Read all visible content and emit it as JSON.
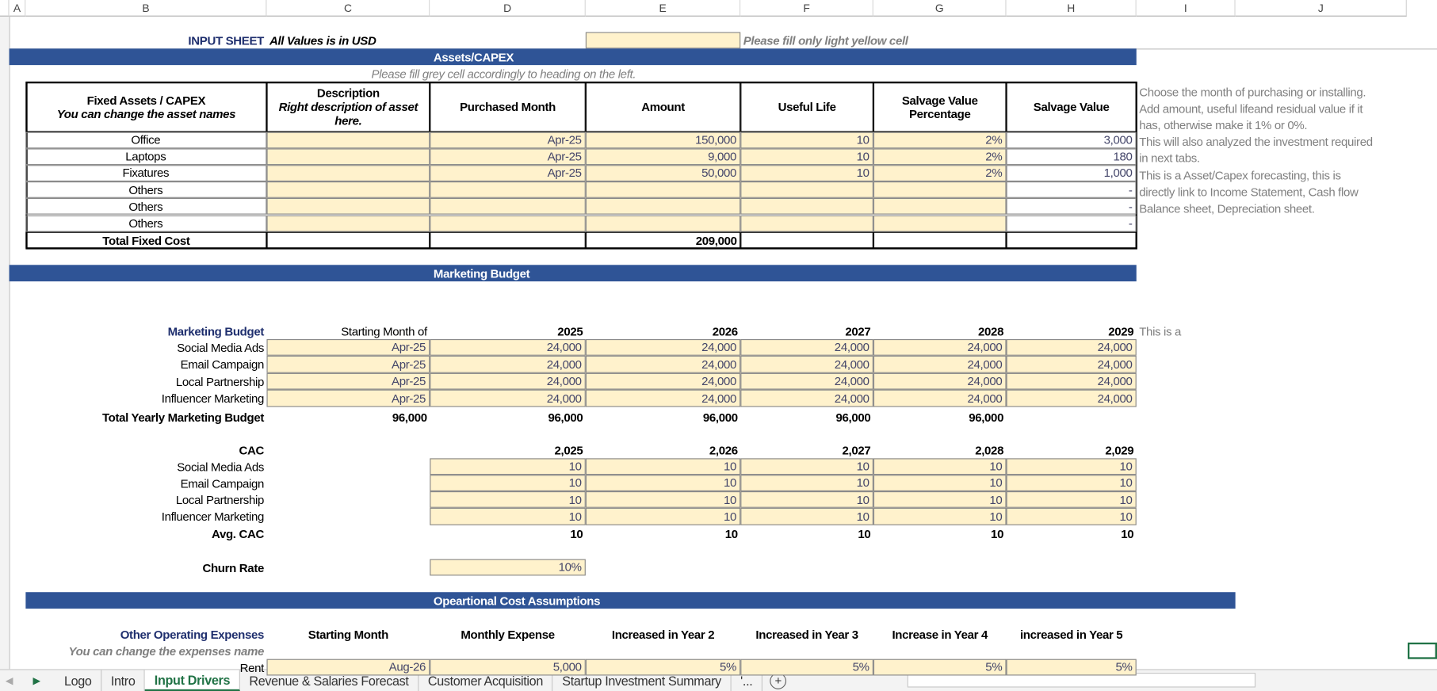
{
  "column_headers": [
    "A",
    "B",
    "C",
    "D",
    "E",
    "F",
    "G",
    "H",
    "I",
    "J"
  ],
  "header": {
    "title": "INPUT SHEET",
    "currency_note": "All Values is in USD",
    "fill_note": "Please fill only light yellow cell"
  },
  "assets": {
    "banner": "Assets/CAPEX",
    "note": "Please fill grey cell accordingly to heading on the left.",
    "columns": {
      "asset": "Fixed Assets / CAPEX",
      "asset_sub": "You can change the asset names",
      "desc": "Description",
      "desc_sub": "Right description of asset here.",
      "month": "Purchased  Month",
      "amount": "Amount",
      "life": "Useful Life",
      "salv_pct": "Salvage Value Percentage",
      "salv": "Salvage Value"
    },
    "rows": [
      {
        "name": "Office",
        "desc": "",
        "month": "Apr-25",
        "amount": "150,000",
        "life": "10",
        "salv_pct": "2%",
        "salv": "3,000"
      },
      {
        "name": "Laptops",
        "desc": "",
        "month": "Apr-25",
        "amount": "9,000",
        "life": "10",
        "salv_pct": "2%",
        "salv": "180"
      },
      {
        "name": "Fixatures",
        "desc": "",
        "month": "Apr-25",
        "amount": "50,000",
        "life": "10",
        "salv_pct": "2%",
        "salv": "1,000"
      },
      {
        "name": "Others",
        "desc": "",
        "month": "",
        "amount": "",
        "life": "",
        "salv_pct": "",
        "salv": "-"
      },
      {
        "name": "Others",
        "desc": "",
        "month": "",
        "amount": "",
        "life": "",
        "salv_pct": "",
        "salv": "-"
      },
      {
        "name": "Others",
        "desc": "",
        "month": "",
        "amount": "",
        "life": "",
        "salv_pct": "",
        "salv": "-"
      }
    ],
    "total_label": "Total Fixed Cost",
    "total_amount": "209,000",
    "help_lines": [
      "Choose the month of purchasing or installing.",
      "Add amount, useful lifeand residual value if it",
      "has, otherwise make it 1% or 0%.",
      "This will also analyzed the investment required",
      "in next tabs.",
      "This is a Asset/Capex forecasting, this is",
      "directly link to Income Statement, Cash flow",
      "Balance sheet, Depreciation sheet."
    ]
  },
  "marketing": {
    "banner": "Marketing Budget",
    "label": "Marketing Budget",
    "start_label": "Starting Month of",
    "years": [
      "2025",
      "2026",
      "2027",
      "2028",
      "2029"
    ],
    "side_note": "This is a",
    "rows": [
      {
        "name": "Social Media Ads",
        "start": "Apr-25",
        "values": [
          "24,000",
          "24,000",
          "24,000",
          "24,000",
          "24,000"
        ]
      },
      {
        "name": "Email Campaign",
        "start": "Apr-25",
        "values": [
          "24,000",
          "24,000",
          "24,000",
          "24,000",
          "24,000"
        ]
      },
      {
        "name": "Local Partnership",
        "start": "Apr-25",
        "values": [
          "24,000",
          "24,000",
          "24,000",
          "24,000",
          "24,000"
        ]
      },
      {
        "name": "Influencer Marketing",
        "start": "Apr-25",
        "values": [
          "24,000",
          "24,000",
          "24,000",
          "24,000",
          "24,000"
        ]
      }
    ],
    "total_label": "Total Yearly Marketing Budget",
    "total_start": "96,000",
    "totals": [
      "96,000",
      "96,000",
      "96,000",
      "96,000",
      ""
    ]
  },
  "cac": {
    "label": "CAC",
    "years": [
      "2,025",
      "2,026",
      "2,027",
      "2,028",
      "2,029"
    ],
    "rows": [
      {
        "name": "Social Media Ads",
        "values": [
          "10",
          "10",
          "10",
          "10",
          "10"
        ]
      },
      {
        "name": "Email Campaign",
        "values": [
          "10",
          "10",
          "10",
          "10",
          "10"
        ]
      },
      {
        "name": "Local Partnership",
        "values": [
          "10",
          "10",
          "10",
          "10",
          "10"
        ]
      },
      {
        "name": "Influencer Marketing",
        "values": [
          "10",
          "10",
          "10",
          "10",
          "10"
        ]
      }
    ],
    "avg_label": "Avg. CAC",
    "avg": [
      "10",
      "10",
      "10",
      "10",
      "10"
    ]
  },
  "churn": {
    "label": "Churn Rate",
    "value": "10%"
  },
  "opex": {
    "banner": "Opeartional Cost Assumptions",
    "label": "Other Operating Expenses",
    "sub": "You can change the expenses name",
    "columns": [
      "Starting Month",
      "Monthly Expense",
      "Increased in Year 2",
      "Increased in Year 3",
      "Increase in Year 4",
      "increased in Year 5"
    ],
    "rows": [
      {
        "name": "Rent",
        "values": [
          "Aug-26",
          "5,000",
          "5%",
          "5%",
          "5%",
          "5%"
        ]
      }
    ]
  },
  "tabs": [
    "Logo",
    "Intro",
    "Input Drivers",
    "Revenue & Salaries Forecast",
    "Customer Acquisition",
    "Startup Investment Summary",
    "'..."
  ],
  "active_tab": 2,
  "colors": {
    "banner": "#2f5496",
    "input_cell": "#fff2cc",
    "active_tab": "#217346"
  }
}
